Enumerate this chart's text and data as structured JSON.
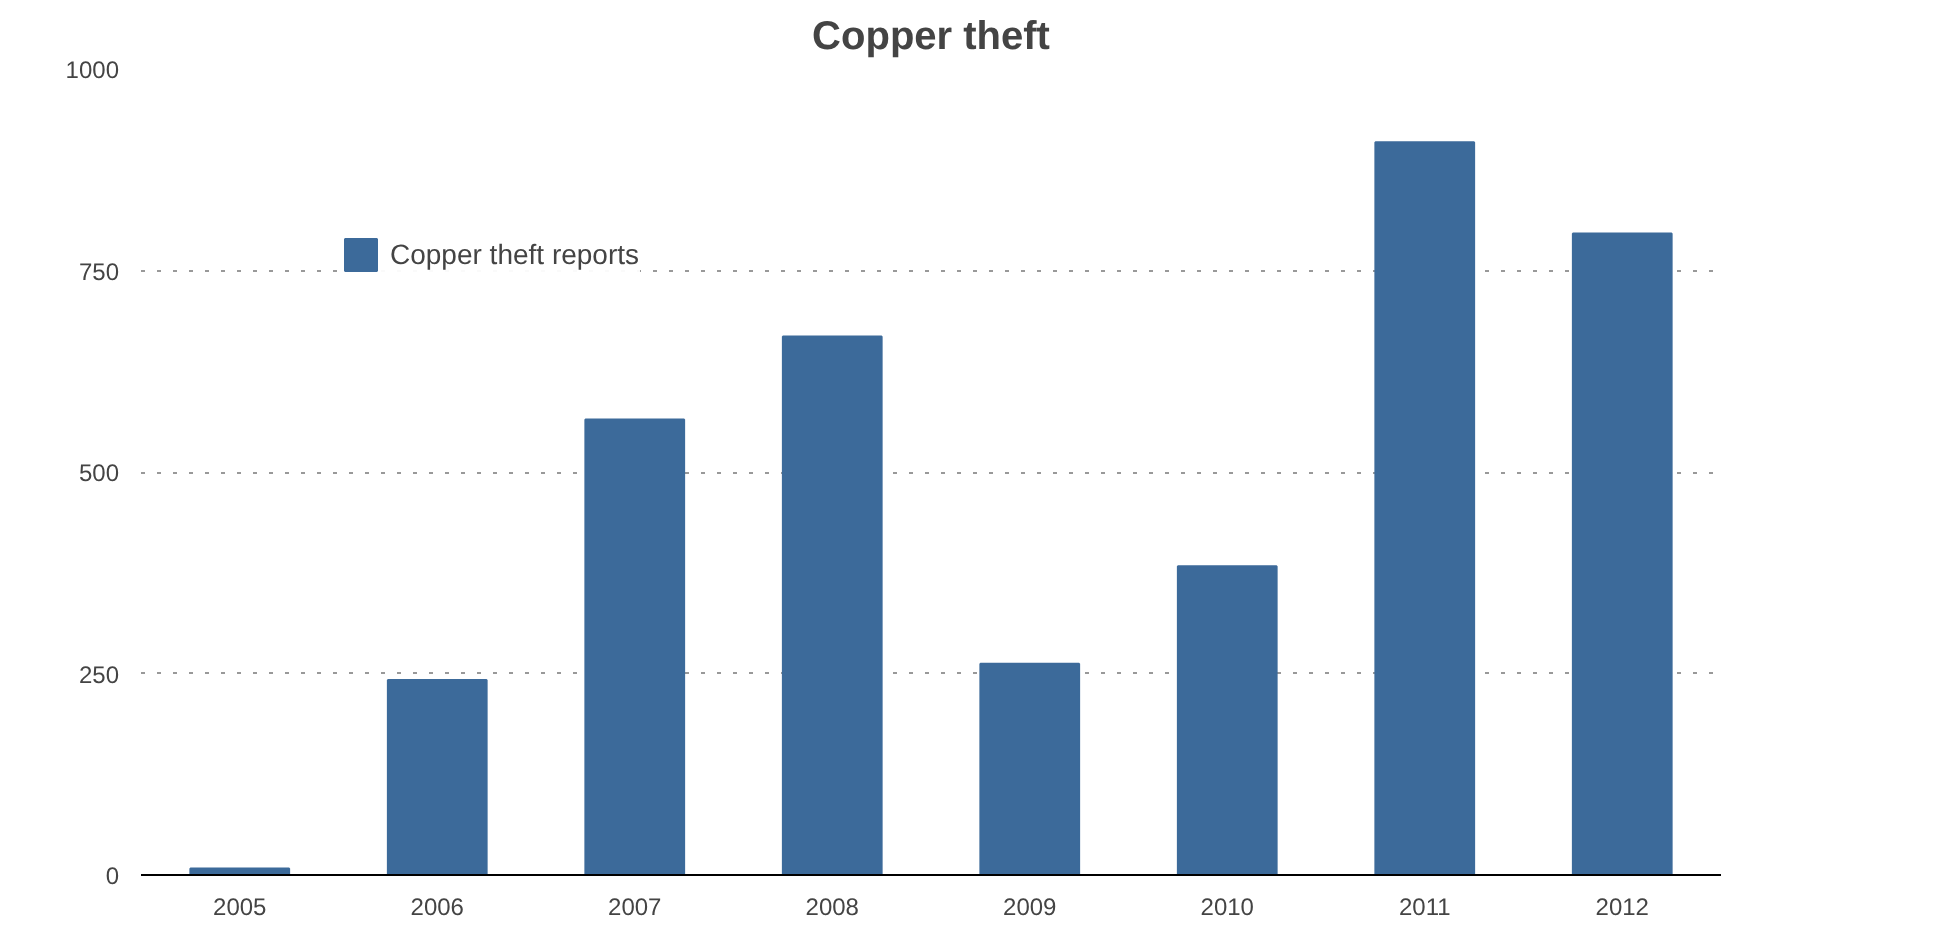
{
  "chart_data": {
    "type": "bar",
    "title": "Copper theft",
    "categories": [
      "2005",
      "2006",
      "2007",
      "2008",
      "2009",
      "2010",
      "2011",
      "2012"
    ],
    "series": [
      {
        "name": "Copper theft reports",
        "color": "#3c6a9a",
        "values": [
          8,
          242,
          565,
          668,
          262,
          383,
          909,
          796
        ]
      }
    ],
    "ylim": [
      0,
      1000
    ],
    "yticks": [
      0,
      250,
      500,
      750,
      1000
    ],
    "grid": "y",
    "legend": "top left"
  }
}
